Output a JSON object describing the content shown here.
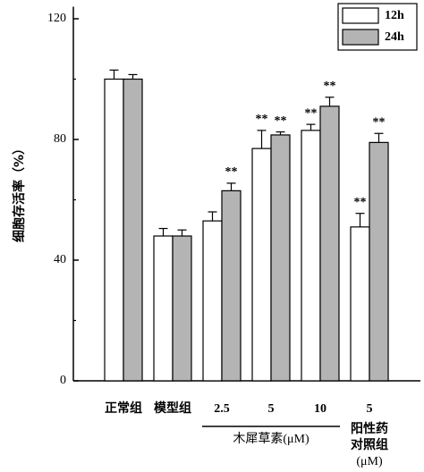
{
  "chart_data": {
    "type": "bar",
    "y_label": "细胞存活率（%）",
    "categories": [
      "正常组",
      "模型组",
      "2.5",
      "5",
      "10",
      "5"
    ],
    "group_label": "木犀草素(μM)",
    "positive_label": [
      "阳性药",
      "对照组",
      "(μM)"
    ],
    "series": [
      {
        "name": "12h",
        "color": "#ffffff",
        "values": [
          100,
          48,
          53,
          77,
          83,
          51
        ],
        "errors": [
          3,
          2.5,
          3,
          6,
          2,
          4.5
        ],
        "marks": [
          null,
          null,
          null,
          "**",
          "**",
          "**"
        ]
      },
      {
        "name": "24h",
        "color": "#b4b4b4",
        "values": [
          100,
          48,
          63,
          81.5,
          91,
          79
        ],
        "errors": [
          1.5,
          2,
          2.5,
          1,
          3,
          3
        ],
        "marks": [
          null,
          null,
          "**",
          "**",
          "**",
          "**"
        ]
      }
    ],
    "ylim": [
      0,
      124
    ],
    "yticks": [
      0,
      40,
      80,
      120
    ],
    "minor_yticks": [
      20,
      60,
      100
    ],
    "legend": "top-right"
  }
}
